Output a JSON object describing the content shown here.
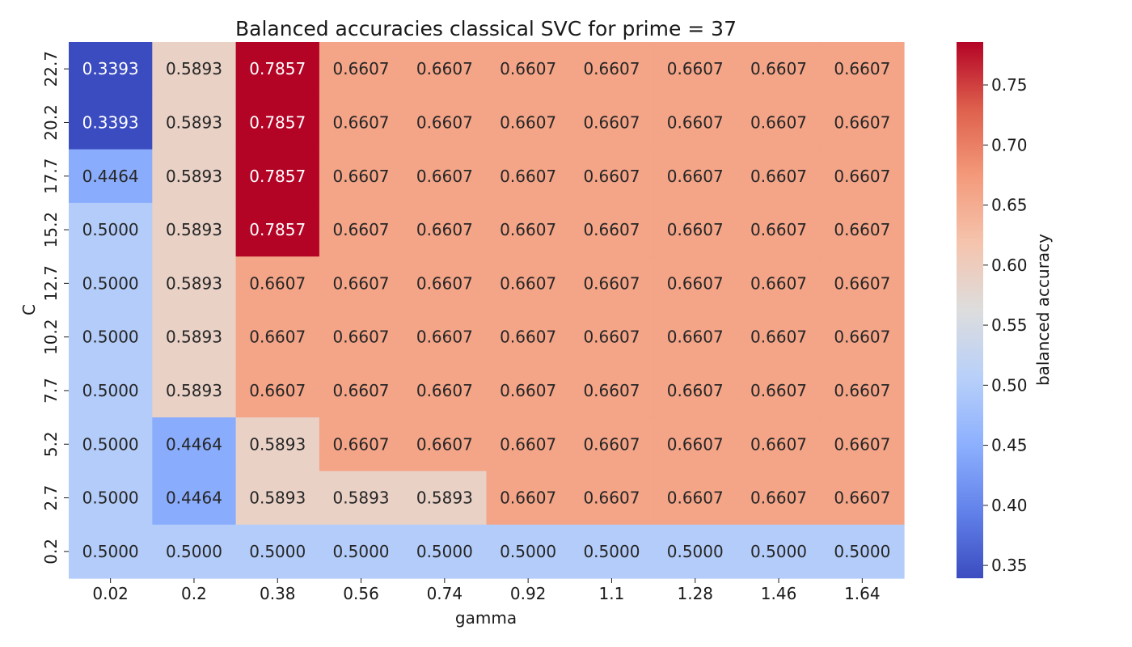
{
  "chart_data": {
    "type": "heatmap",
    "title": "Balanced accuracies classical SVC for prime = 37",
    "xlabel": "gamma",
    "ylabel": "C",
    "x_categories": [
      "0.02",
      "0.2",
      "0.38",
      "0.56",
      "0.74",
      "0.92",
      "1.1",
      "1.28",
      "1.46",
      "1.64"
    ],
    "y_categories": [
      "22.7",
      "20.2",
      "17.7",
      "15.2",
      "12.7",
      "10.2",
      "7.7",
      "5.2",
      "2.7",
      "0.2"
    ],
    "values": [
      [
        0.3393,
        0.5893,
        0.7857,
        0.6607,
        0.6607,
        0.6607,
        0.6607,
        0.6607,
        0.6607,
        0.6607
      ],
      [
        0.3393,
        0.5893,
        0.7857,
        0.6607,
        0.6607,
        0.6607,
        0.6607,
        0.6607,
        0.6607,
        0.6607
      ],
      [
        0.4464,
        0.5893,
        0.7857,
        0.6607,
        0.6607,
        0.6607,
        0.6607,
        0.6607,
        0.6607,
        0.6607
      ],
      [
        0.5,
        0.5893,
        0.7857,
        0.6607,
        0.6607,
        0.6607,
        0.6607,
        0.6607,
        0.6607,
        0.6607
      ],
      [
        0.5,
        0.5893,
        0.6607,
        0.6607,
        0.6607,
        0.6607,
        0.6607,
        0.6607,
        0.6607,
        0.6607
      ],
      [
        0.5,
        0.5893,
        0.6607,
        0.6607,
        0.6607,
        0.6607,
        0.6607,
        0.6607,
        0.6607,
        0.6607
      ],
      [
        0.5,
        0.5893,
        0.6607,
        0.6607,
        0.6607,
        0.6607,
        0.6607,
        0.6607,
        0.6607,
        0.6607
      ],
      [
        0.5,
        0.4464,
        0.5893,
        0.6607,
        0.6607,
        0.6607,
        0.6607,
        0.6607,
        0.6607,
        0.6607
      ],
      [
        0.5,
        0.4464,
        0.5893,
        0.5893,
        0.5893,
        0.6607,
        0.6607,
        0.6607,
        0.6607,
        0.6607
      ],
      [
        0.5,
        0.5,
        0.5,
        0.5,
        0.5,
        0.5,
        0.5,
        0.5,
        0.5,
        0.5
      ]
    ],
    "value_format": "4 decimals",
    "colormap": "coolwarm",
    "color_range": [
      0.3393,
      0.7857
    ],
    "colorbar": {
      "label": "balanced accuracy",
      "ticks": [
        "0.35",
        "0.40",
        "0.45",
        "0.50",
        "0.55",
        "0.60",
        "0.65",
        "0.70",
        "0.75"
      ],
      "placement": "right"
    },
    "grid": false
  }
}
